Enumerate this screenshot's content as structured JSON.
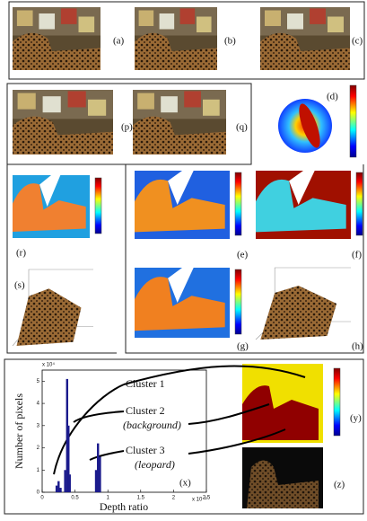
{
  "panel_labels": [
    "(a)",
    "(b)",
    "(c)",
    "(p)",
    "(q)",
    "(d)",
    "(r)",
    "(s)",
    "(e)",
    "(f)",
    "(g)",
    "(h)",
    "(y)",
    "(z)"
  ],
  "chart_data": {
    "type": "bar",
    "panel_label": "(x)",
    "x_label": "Depth ratio",
    "y_label": "Number of pixels",
    "x_multiplier": "x 10⁻³",
    "y_multiplier": "x 10⁴",
    "annotations": [
      "Cluster 1",
      "Cluster 2",
      "(background)",
      "Cluster 3",
      "(leopard)"
    ],
    "x": [
      0.22,
      0.25,
      0.28,
      0.35,
      0.38,
      0.4,
      0.42,
      0.82,
      0.85,
      0.88
    ],
    "values": [
      0.3,
      0.5,
      0.2,
      1.0,
      5.1,
      3.0,
      0.8,
      1.0,
      2.2,
      1.6
    ],
    "color": "#1a1a8c",
    "xlim": [
      0,
      2.5
    ],
    "xticks": [
      0,
      0.5,
      1,
      1.5,
      2,
      2.5
    ],
    "ylim": [
      0,
      5.5
    ],
    "yticks": [
      0,
      1,
      2,
      3,
      4,
      5
    ]
  }
}
